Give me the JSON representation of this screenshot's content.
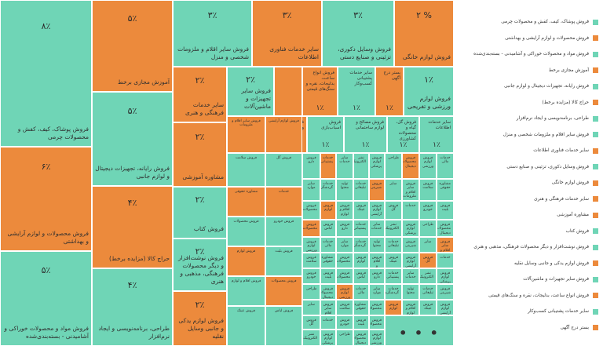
{
  "chart_data": {
    "type": "treemap",
    "colors": {
      "teal": "#6fd5b6",
      "orange": "#ec8a3c"
    },
    "labeled": [
      {
        "label": "فروش پوشاک، کیف، کفش و محصولات چرمی",
        "value_label": "۸٪",
        "value": 8,
        "color": "teal"
      },
      {
        "label": "فروش محصولات و لوازم آرایشی و بهداشتی",
        "value_label": "۶٪",
        "value": 6,
        "color": "orange"
      },
      {
        "label": "فروش مواد و محصولات خوراکی و آشامیدنی - بسته‌بندی‌شده",
        "value_label": "۵٪",
        "value": 5,
        "color": "teal"
      },
      {
        "label": "آموزش مجازی برخط",
        "value_label": "۵٪",
        "value": 5,
        "color": "orange"
      },
      {
        "label": "فروش رایانه، تجهیزات دیجیتال و لوازم جانبی",
        "value_label": "۵٪",
        "value": 5,
        "color": "teal"
      },
      {
        "label": "حراج کالا (مزایده برخط)",
        "value_label": "۴٪",
        "value": 4,
        "color": "orange"
      },
      {
        "label": "طراحی، برنامه‌نویسی و ایجاد نرم‌افزار",
        "value_label": "۴٪",
        "value": 4,
        "color": "teal"
      },
      {
        "label": "فروش سایر اقلام و ملزومات شخصی و منزل",
        "value_label": "۳٪",
        "value": 3,
        "color": "teal"
      },
      {
        "label": "سایر خدمات فناوری اطلاعات",
        "value_label": "۳٪",
        "value": 3,
        "color": "orange"
      },
      {
        "label": "فروش وسایل دکوری، تزئینی و صنایع دستی",
        "value_label": "۳٪",
        "value": 3,
        "color": "teal"
      },
      {
        "label": "فروش لوازم خانگی",
        "value_label": "۲ %",
        "value": 2,
        "color": "orange"
      },
      {
        "label": "سایر خدمات فرهنگی و هنری",
        "value_label": "۲٪",
        "value": 2,
        "color": "orange"
      },
      {
        "label": "مشاوره آموزشی",
        "value_label": "۲٪",
        "value": 2,
        "color": "orange"
      },
      {
        "label": "فروش کتاب",
        "value_label": "۲٪",
        "value": 2,
        "color": "teal"
      },
      {
        "label": "فروش نوشت‌افزار و دیگر محصولات فرهنگی، مذهبی و هنری",
        "value_label": "۲٪",
        "value": 2,
        "color": "teal"
      },
      {
        "label": "فروش لوازم یدکی و جانبی وسایل نقلیه",
        "value_label": "۲٪",
        "value": 2,
        "color": "orange"
      },
      {
        "label": "فروش سایر تجهیزات و ماشین‌آلات",
        "value_label": "۲٪",
        "value": 2,
        "color": "teal"
      },
      {
        "label": "فروش انواع ساعت، بدلیجات، نقره و سنگ‌های قیمتی",
        "value_label": "۱٪",
        "value": 1,
        "color": "orange"
      },
      {
        "label": "سایر خدمات پشتیبانی کسب‌وکار",
        "value_label": "۱٪",
        "value": 1,
        "color": "teal"
      },
      {
        "label": "بستر درج آگهی",
        "value_label": "۱٪",
        "value": 1,
        "color": "orange"
      },
      {
        "label": "فروش لوازم ورزشی و تفریحی",
        "value_label": "۱٪",
        "value": 1,
        "color": "teal"
      },
      {
        "label": "فروش سایر کالاها و ملزومات صنعتی",
        "value_label": "۱٪",
        "value": 1,
        "color": "orange"
      },
      {
        "label": "فروش اسباب‌بازی",
        "value_label": "۱٪",
        "value": 1,
        "color": "teal"
      },
      {
        "label": "فروش مصالح و لوازم ساختمانی",
        "value_label": "۱٪",
        "value": 1,
        "color": "teal"
      },
      {
        "label": "فروش گل، گیاه و محصولات کشاورزی",
        "value_label": "۱٪",
        "value": 1,
        "color": "teal"
      },
      {
        "label": "سایر خدمات اطلاعات",
        "value_label": "۱٪",
        "value": 1,
        "color": "teal"
      }
    ],
    "small_labels": [
      "فروش سایر اقلام و ملزومات",
      "فروش سلامت",
      "مشاوره حقوقی",
      "فروش محصولات",
      "فروش لوازم",
      "فروش اقلام و لوازم",
      "فروش عینک",
      "فروش لوازم آرایشی",
      "فروش گل",
      "خدمات",
      "فروش خودرو",
      "فروش بلیت",
      "فروش محصولات",
      "فروش لباس",
      "فروش دارو",
      "خدمات پشتیبانی",
      "سایر خدمات",
      "نشر الکترونیک",
      "فروش لوازم پزشکی",
      "طراحی",
      "فروش محصولات دیجیتال",
      "فروش لوازم ورزشی",
      "خدمات مالی",
      "سایر موارد",
      "خدمات گردشگری",
      "تولید محتوا",
      "خدمات تبلیغاتی",
      "فروش شیرینی",
      "سایر"
    ],
    "legend": [
      {
        "label": "فروش پوشاک، کیف، کفش و محصولات چرمی",
        "color": "teal"
      },
      {
        "label": "فروش محصولات و لوازم آرایشی و بهداشتی",
        "color": "orange"
      },
      {
        "label": "فروش مواد و محصولات خوراکی و آشامیدنی - بسته‌بندی‌شده",
        "color": "teal"
      },
      {
        "label": "آموزش مجازی برخط",
        "color": "orange"
      },
      {
        "label": "فروش رایانه، تجهیزات دیجیتال و لوازم جانبی",
        "color": "teal"
      },
      {
        "label": "حراج کالا (مزایده برخط)",
        "color": "orange"
      },
      {
        "label": "طراحی، برنامه‌نویسی و ایجاد نرم‌افزار",
        "color": "teal"
      },
      {
        "label": "فروش سایر اقلام و ملزومات شخصی و منزل",
        "color": "teal"
      },
      {
        "label": "سایر خدمات فناوری اطلاعات",
        "color": "orange"
      },
      {
        "label": "فروش وسایل دکوری، تزئینی و صنایع دستی",
        "color": "teal"
      },
      {
        "label": "فروش لوازم خانگی",
        "color": "orange"
      },
      {
        "label": "سایر خدمات فرهنگی و هنری",
        "color": "orange"
      },
      {
        "label": "مشاوره آموزشی",
        "color": "orange"
      },
      {
        "label": "فروش کتاب",
        "color": "teal"
      },
      {
        "label": "فروش نوشت‌افزار و دیگر محصولات فرهنگی، مذهبی و هنری",
        "color": "teal"
      },
      {
        "label": "فروش لوازم یدکی و جانبی وسایل نقلیه",
        "color": "orange"
      },
      {
        "label": "فروش سایر تجهیزات و ماشین‌آلات",
        "color": "teal"
      },
      {
        "label": "فروش انواع ساعت، بدلیجات، نقره و سنگ‌های قیمتی",
        "color": "orange"
      },
      {
        "label": "سایر خدمات پشتیبانی کسب‌وکار",
        "color": "teal"
      },
      {
        "label": "بستر درج آگهی",
        "color": "orange"
      }
    ],
    "more_indicator": "• • •"
  }
}
